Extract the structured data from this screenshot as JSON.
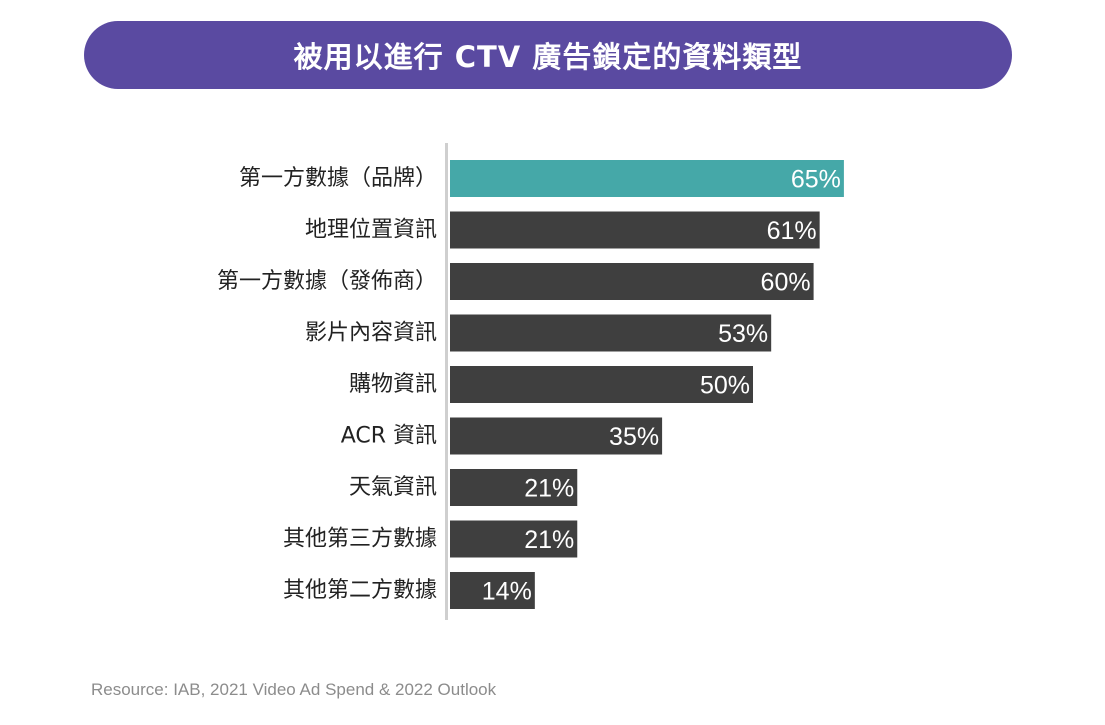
{
  "header": {
    "title": "被用以進行 CTV 廣告鎖定的資料類型"
  },
  "source": "Resource: IAB, 2021 Video Ad Spend & 2022 Outlook",
  "colors": {
    "banner": "#5a4aa1",
    "highlight": "#45a8a8",
    "bar": "#3f3f3f",
    "axis": "#cfcfcf",
    "label": "#222222",
    "value_text": "#ffffff"
  },
  "chart_data": {
    "type": "bar",
    "orientation": "horizontal",
    "title": "被用以進行 CTV 廣告鎖定的資料類型",
    "xlabel": "",
    "ylabel": "",
    "unit": "%",
    "xlim": [
      0,
      65
    ],
    "grid": false,
    "legend": "none",
    "categories": [
      "第一方數據（品牌）",
      "地理位置資訊",
      "第一方數據（發佈商）",
      "影片內容資訊",
      "購物資訊",
      "ACR 資訊",
      "天氣資訊",
      "其他第三方數據",
      "其他第二方數據"
    ],
    "values": [
      65,
      61,
      60,
      53,
      50,
      35,
      21,
      21,
      14
    ],
    "highlight_index": 0
  }
}
